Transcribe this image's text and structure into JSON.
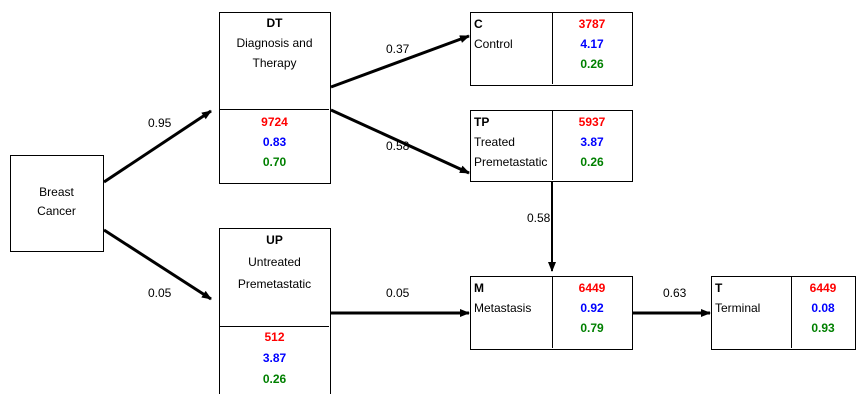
{
  "breast": {
    "line1": "Breast",
    "line2": "Cancer"
  },
  "dt": {
    "code": "DT",
    "line1": "Diagnosis and",
    "line2": "Therapy",
    "v1": "9724",
    "v2": "0.83",
    "v3": "0.70"
  },
  "up": {
    "code": "UP",
    "line1": "Untreated",
    "line2": "Premetastatic",
    "v1": "512",
    "v2": "3.87",
    "v3": "0.26"
  },
  "c": {
    "code": "C",
    "line1": "Control",
    "v1": "3787",
    "v2": "4.17",
    "v3": "0.26"
  },
  "tp": {
    "code": "TP",
    "line1": "Treated",
    "line2": "Premetastatic",
    "v1": "5937",
    "v2": "3.87",
    "v3": "0.26"
  },
  "m": {
    "code": "M",
    "line1": "Metastasis",
    "v1": "6449",
    "v2": "0.92",
    "v3": "0.79"
  },
  "t": {
    "code": "T",
    "line1": "Terminal",
    "v1": "6449",
    "v2": "0.08",
    "v3": "0.93"
  },
  "edges": {
    "bc_dt": "0.95",
    "bc_up": "0.05",
    "dt_c": "0.37",
    "dt_tp": "0.58",
    "tp_m": "0.58",
    "up_m": "0.05",
    "m_t": "0.63"
  },
  "colors": {
    "cost": "#ff0000",
    "utility": "#0000ff",
    "probability": "#008000"
  }
}
